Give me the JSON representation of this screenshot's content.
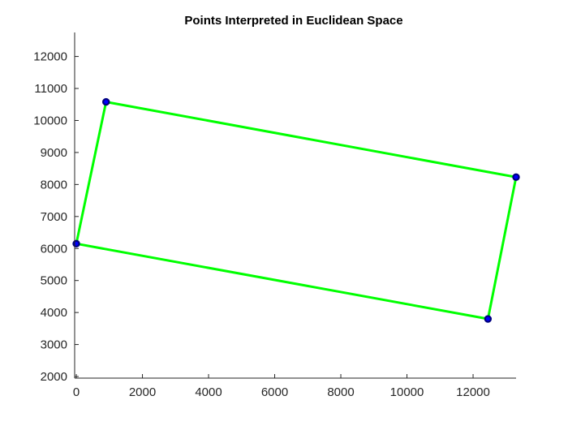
{
  "chart_data": {
    "type": "line",
    "title": "Points Interpreted in Euclidean Space",
    "xlabel": "",
    "ylabel": "",
    "xlim": [
      -50,
      13300
    ],
    "ylim": [
      1950,
      12750
    ],
    "grid": false,
    "x_ticks": [
      0,
      2000,
      4000,
      6000,
      8000,
      10000,
      12000
    ],
    "y_ticks": [
      2000,
      3000,
      4000,
      5000,
      6000,
      7000,
      8000,
      9000,
      10000,
      11000,
      12000
    ],
    "x_tick_labels": [
      "0",
      "2000",
      "4000",
      "6000",
      "8000",
      "10000",
      "12000"
    ],
    "y_tick_labels": [
      "2000",
      "3000",
      "4000",
      "5000",
      "6000",
      "7000",
      "8000",
      "9000",
      "10000",
      "11000",
      "12000"
    ],
    "series": [
      {
        "kind": "points",
        "x": [
          0,
          900,
          13300,
          12450
        ],
        "y": [
          6150,
          10580,
          8230,
          3800
        ]
      },
      {
        "kind": "polygon",
        "x": [
          0,
          900,
          13300,
          12450,
          0
        ],
        "y": [
          6150,
          10580,
          8230,
          3800,
          6150
        ]
      }
    ],
    "colors": {
      "edge": "#00ff00",
      "vertex_fill": "#0000ff",
      "vertex_edge": "#000080"
    }
  }
}
